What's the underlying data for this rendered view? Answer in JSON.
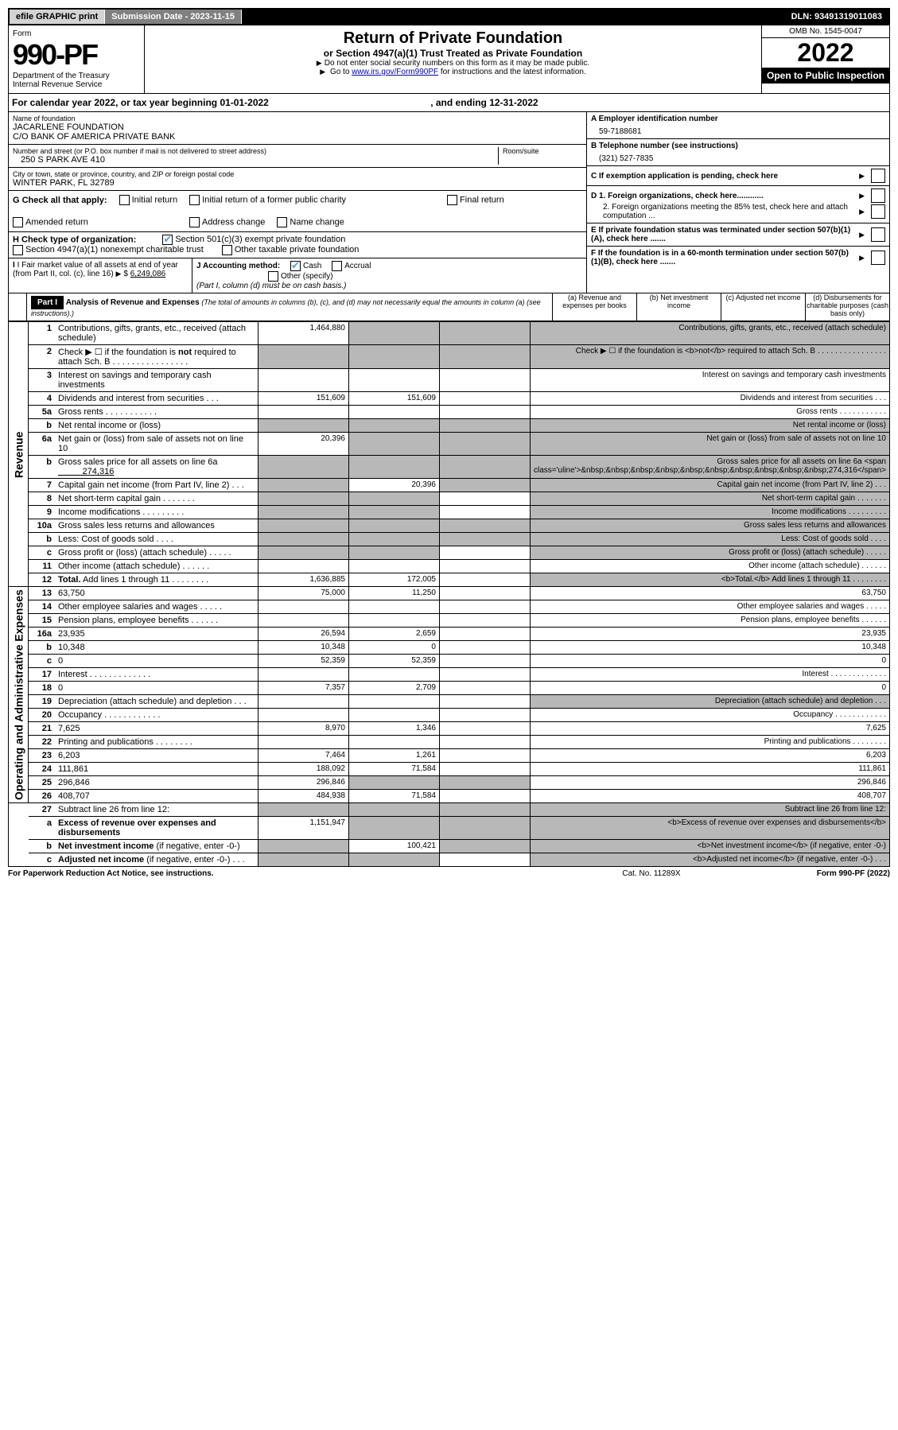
{
  "topbar": {
    "efile": "efile GRAPHIC print",
    "subdate_label": "Submission Date - 2023-11-15",
    "dln": "DLN: 93491319011083"
  },
  "header": {
    "form_label": "Form",
    "form_number": "990-PF",
    "dept": "Department of the Treasury",
    "irs": "Internal Revenue Service",
    "title": "Return of Private Foundation",
    "subtitle": "or Section 4947(a)(1) Trust Treated as Private Foundation",
    "note1": "Do not enter social security numbers on this form as it may be made public.",
    "note2_pre": "Go to ",
    "note2_link": "www.irs.gov/Form990PF",
    "note2_post": " for instructions and the latest information.",
    "omb": "OMB No. 1545-0047",
    "year": "2022",
    "inspection": "Open to Public Inspection"
  },
  "calyear": {
    "text_pre": "For calendar year 2022, or tax year beginning ",
    "begin": "01-01-2022",
    "text_mid": ", and ending ",
    "end": "12-31-2022"
  },
  "info": {
    "name_label": "Name of foundation",
    "name1": "JACARLENE FOUNDATION",
    "name2": "C/O BANK OF AMERICA PRIVATE BANK",
    "street_label": "Number and street (or P.O. box number if mail is not delivered to street address)",
    "street": "250 S PARK AVE 410",
    "room_label": "Room/suite",
    "city_label": "City or town, state or province, country, and ZIP or foreign postal code",
    "city": "WINTER PARK, FL  32789",
    "a_label": "A Employer identification number",
    "a_val": "59-7188681",
    "b_label": "B Telephone number (see instructions)",
    "b_val": "(321) 527-7835",
    "c_label": "C If exemption application is pending, check here",
    "d1": "D 1. Foreign organizations, check here............",
    "d2": "2. Foreign organizations meeting the 85% test, check here and attach computation ...",
    "e": "E  If private foundation status was terminated under section 507(b)(1)(A), check here .......",
    "f": "F  If the foundation is in a 60-month termination under section 507(b)(1)(B), check here .......",
    "g_label": "G Check all that apply:",
    "g_opts": [
      "Initial return",
      "Initial return of a former public charity",
      "Final return",
      "Amended return",
      "Address change",
      "Name change"
    ],
    "h_label": "H Check type of organization:",
    "h_opt1": "Section 501(c)(3) exempt private foundation",
    "h_opt2": "Section 4947(a)(1) nonexempt charitable trust",
    "h_opt3": "Other taxable private foundation",
    "i_label": "I Fair market value of all assets at end of year (from Part II, col. (c), line 16)",
    "i_val": "6,249,086",
    "j_label": "J Accounting method:",
    "j_cash": "Cash",
    "j_accrual": "Accrual",
    "j_other": "Other (specify)",
    "j_note": "(Part I, column (d) must be on cash basis.)"
  },
  "part1": {
    "label": "Part I",
    "title": "Analysis of Revenue and Expenses",
    "note": "(The total of amounts in columns (b), (c), and (d) may not necessarily equal the amounts in column (a) (see instructions).)",
    "cols": {
      "a": "(a) Revenue and expenses per books",
      "b": "(b) Net investment income",
      "c": "(c) Adjusted net income",
      "d": "(d) Disbursements for charitable purposes (cash basis only)"
    }
  },
  "sides": {
    "rev": "Revenue",
    "exp": "Operating and Administrative Expenses"
  },
  "rows": [
    {
      "n": "1",
      "d": "Contributions, gifts, grants, etc., received (attach schedule)",
      "section": "rev",
      "a": "1,464,880",
      "b_shade": true,
      "c_shade": true,
      "d_shade": true
    },
    {
      "n": "2",
      "d": "Check ▶ ☐ if the foundation is <b>not</b> required to attach Sch. B   .  .  .  .  .  .  .  .  .  .  .  .  .  .  .  .",
      "section": "rev",
      "a_shade": true,
      "b_shade": true,
      "c_shade": true,
      "d_shade": true
    },
    {
      "n": "3",
      "d": "Interest on savings and temporary cash investments",
      "section": "rev"
    },
    {
      "n": "4",
      "d": "Dividends and interest from securities   .   .   .",
      "section": "rev",
      "a": "151,609",
      "b": "151,609"
    },
    {
      "n": "5a",
      "d": "Gross rents   .   .   .   .   .   .   .   .   .   .   .",
      "section": "rev"
    },
    {
      "n": "b",
      "d": "Net rental income or (loss)  ",
      "section": "rev",
      "a_shade": true,
      "b_shade": true,
      "c_shade": true,
      "d_shade": true
    },
    {
      "n": "6a",
      "d": "Net gain or (loss) from sale of assets not on line 10",
      "section": "rev",
      "a": "20,396",
      "b_shade": true,
      "c_shade": true,
      "d_shade": true
    },
    {
      "n": "b",
      "d": "Gross sales price for all assets on line 6a <span class='uline'>&nbsp;&nbsp;&nbsp;&nbsp;&nbsp;&nbsp;&nbsp;&nbsp;&nbsp;&nbsp;274,316</span>",
      "section": "rev",
      "a_shade": true,
      "b_shade": true,
      "c_shade": true,
      "d_shade": true
    },
    {
      "n": "7",
      "d": "Capital gain net income (from Part IV, line 2)   .   .   .",
      "section": "rev",
      "a_shade": true,
      "b": "20,396",
      "c_shade": true,
      "d_shade": true
    },
    {
      "n": "8",
      "d": "Net short-term capital gain   .   .   .   .   .   .   .",
      "section": "rev",
      "a_shade": true,
      "b_shade": true,
      "d_shade": true
    },
    {
      "n": "9",
      "d": "Income modifications  .   .   .   .   .   .   .   .   .",
      "section": "rev",
      "a_shade": true,
      "b_shade": true,
      "d_shade": true
    },
    {
      "n": "10a",
      "d": "Gross sales less returns and allowances ",
      "section": "rev",
      "a_shade": true,
      "b_shade": true,
      "c_shade": true,
      "d_shade": true
    },
    {
      "n": "b",
      "d": "Less: Cost of goods sold   .   .   .   .",
      "section": "rev",
      "a_shade": true,
      "b_shade": true,
      "c_shade": true,
      "d_shade": true
    },
    {
      "n": "c",
      "d": "Gross profit or (loss) (attach schedule)   .   .   .   .   .",
      "section": "rev",
      "a_shade": true,
      "b_shade": true,
      "d_shade": true
    },
    {
      "n": "11",
      "d": "Other income (attach schedule)   .   .   .   .   .   .",
      "section": "rev"
    },
    {
      "n": "12",
      "d": "<b>Total.</b> Add lines 1 through 11   .   .   .   .   .   .   .   .",
      "section": "rev",
      "a": "1,636,885",
      "b": "172,005",
      "d_shade": true
    },
    {
      "n": "13",
      "d": "63,750",
      "section": "exp",
      "a": "75,000",
      "b": "11,250"
    },
    {
      "n": "14",
      "d": "Other employee salaries and wages   .   .   .   .   .",
      "section": "exp"
    },
    {
      "n": "15",
      "d": "Pension plans, employee benefits   .   .   .   .   .   .",
      "section": "exp"
    },
    {
      "n": "16a",
      "d": "23,935",
      "section": "exp",
      "a": "26,594",
      "b": "2,659"
    },
    {
      "n": "b",
      "d": "10,348",
      "section": "exp",
      "a": "10,348",
      "b": "0"
    },
    {
      "n": "c",
      "d": "0",
      "section": "exp",
      "a": "52,359",
      "b": "52,359"
    },
    {
      "n": "17",
      "d": "Interest  .   .   .   .   .   .   .   .   .   .   .   .   .",
      "section": "exp"
    },
    {
      "n": "18",
      "d": "0",
      "section": "exp",
      "a": "7,357",
      "b": "2,709"
    },
    {
      "n": "19",
      "d": "Depreciation (attach schedule) and depletion   .   .   .",
      "section": "exp",
      "d_shade": true
    },
    {
      "n": "20",
      "d": "Occupancy  .   .   .   .   .   .   .   .   .   .   .   .",
      "section": "exp"
    },
    {
      "n": "21",
      "d": "7,625",
      "section": "exp",
      "a": "8,970",
      "b": "1,346"
    },
    {
      "n": "22",
      "d": "Printing and publications  .   .   .   .   .   .   .   .",
      "section": "exp"
    },
    {
      "n": "23",
      "d": "6,203",
      "section": "exp",
      "a": "7,464",
      "b": "1,261"
    },
    {
      "n": "24",
      "d": "111,861",
      "section": "exp",
      "a": "188,092",
      "b": "71,584"
    },
    {
      "n": "25",
      "d": "296,846",
      "section": "exp",
      "a": "296,846",
      "b_shade": true,
      "c_shade": true
    },
    {
      "n": "26",
      "d": "408,707",
      "section": "exp",
      "a": "484,938",
      "b": "71,584"
    },
    {
      "n": "27",
      "d": "Subtract line 26 from line 12:",
      "section": "none",
      "a_shade": true,
      "b_shade": true,
      "c_shade": true,
      "d_shade": true
    },
    {
      "n": "a",
      "d": "<b>Excess of revenue over expenses and disbursements</b>",
      "section": "none",
      "a": "1,151,947",
      "b_shade": true,
      "c_shade": true,
      "d_shade": true
    },
    {
      "n": "b",
      "d": "<b>Net investment income</b> (if negative, enter -0-)",
      "section": "none",
      "a_shade": true,
      "b": "100,421",
      "c_shade": true,
      "d_shade": true
    },
    {
      "n": "c",
      "d": "<b>Adjusted net income</b> (if negative, enter -0-)   .   .   .",
      "section": "none",
      "a_shade": true,
      "b_shade": true,
      "d_shade": true
    }
  ],
  "footer": {
    "left": "For Paperwork Reduction Act Notice, see instructions.",
    "mid": "Cat. No. 11289X",
    "right": "Form 990-PF (2022)"
  }
}
